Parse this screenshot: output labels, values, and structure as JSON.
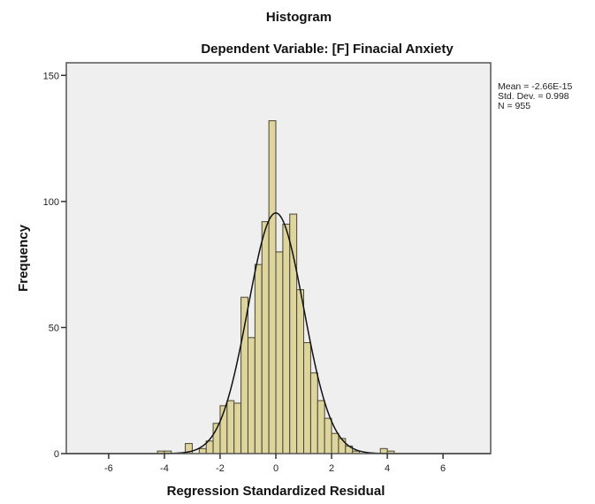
{
  "chart_data": {
    "type": "bar",
    "title": "Histogram",
    "subtitle": "Dependent Variable: [F] Finacial Anxiety",
    "xlabel": "Regression Standardized Residual",
    "ylabel": "Frequency",
    "xlim": [
      -7.52,
      7.71
    ],
    "ylim": [
      0,
      155
    ],
    "xticks": [
      -6,
      -4,
      -2,
      0,
      2,
      4,
      6
    ],
    "yticks": [
      0,
      50,
      100,
      150
    ],
    "bin_width": 0.25,
    "bins": [
      {
        "start": -4.25,
        "count": 1
      },
      {
        "start": -4.0,
        "count": 1
      },
      {
        "start": -3.25,
        "count": 4
      },
      {
        "start": -2.75,
        "count": 2
      },
      {
        "start": -2.5,
        "count": 5
      },
      {
        "start": -2.25,
        "count": 12
      },
      {
        "start": -2.0,
        "count": 19
      },
      {
        "start": -1.75,
        "count": 21
      },
      {
        "start": -1.5,
        "count": 20
      },
      {
        "start": -1.25,
        "count": 62
      },
      {
        "start": -1.0,
        "count": 46
      },
      {
        "start": -0.75,
        "count": 75
      },
      {
        "start": -0.5,
        "count": 92
      },
      {
        "start": -0.25,
        "count": 132
      },
      {
        "start": 0.0,
        "count": 80
      },
      {
        "start": 0.25,
        "count": 91
      },
      {
        "start": 0.5,
        "count": 95
      },
      {
        "start": 0.75,
        "count": 65
      },
      {
        "start": 1.0,
        "count": 44
      },
      {
        "start": 1.25,
        "count": 32
      },
      {
        "start": 1.5,
        "count": 21
      },
      {
        "start": 1.75,
        "count": 14
      },
      {
        "start": 2.0,
        "count": 8
      },
      {
        "start": 2.25,
        "count": 6
      },
      {
        "start": 2.5,
        "count": 3
      },
      {
        "start": 2.75,
        "count": 1
      },
      {
        "start": 3.75,
        "count": 2
      },
      {
        "start": 4.0,
        "count": 1
      }
    ],
    "normal_curve": {
      "mean": -2.66e-15,
      "sd": 0.998,
      "n": 955
    },
    "stats": [
      "Mean = -2.66E-15",
      "Std. Dev. = 0.998",
      "N = 955"
    ],
    "colors": {
      "bar": "#ddd49e",
      "bar_edge": "#4a4630",
      "plot_bg": "#efeff0",
      "curve": "#111111"
    }
  }
}
